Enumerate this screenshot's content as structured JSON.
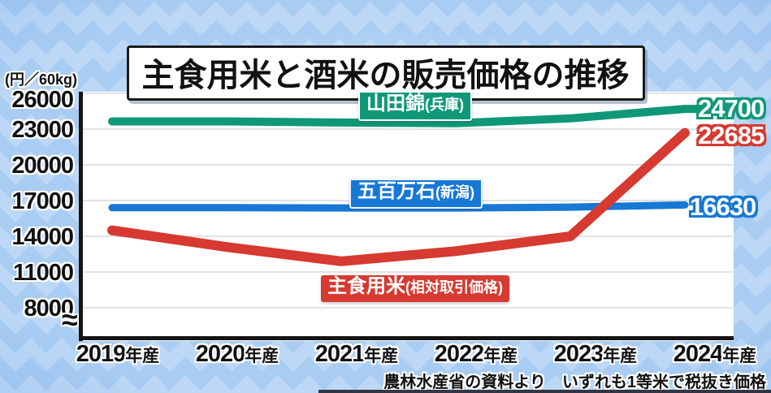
{
  "chart_data": {
    "type": "line",
    "title": "主食用米と酒米の販売価格の推移",
    "unit_label": "(円／60kg)",
    "y_ticks": [
      26000,
      23000,
      20000,
      17000,
      14000,
      11000,
      8000
    ],
    "ylim": [
      8000,
      26000
    ],
    "grid": true,
    "axis_break_symbol": "≈",
    "legend_position": "labels-inline-on-chart",
    "x_labels": [
      "2019",
      "2020",
      "2021",
      "2022",
      "2023",
      "2024"
    ],
    "x_label_suffix": "年産",
    "series": [
      {
        "name": "山田錦(兵庫)",
        "label_main": "山田錦",
        "label_paren": "(兵庫)",
        "color": "#0f9878",
        "values": [
          23650,
          23650,
          23550,
          23500,
          23900,
          24700
        ],
        "end_label": "24700"
      },
      {
        "name": "五百万石(新潟)",
        "label_main": "五百万石",
        "label_paren": "(新潟)",
        "color": "#1778d6",
        "values": [
          16400,
          16400,
          16380,
          16380,
          16450,
          16630
        ],
        "end_label": "16630"
      },
      {
        "name": "主食用米(相対取引価格)",
        "label_main": "主食用米",
        "label_paren": "(相対取引価格)",
        "color": "#d63a31",
        "values": [
          14500,
          13100,
          11900,
          12750,
          14000,
          22685
        ],
        "end_label": "22685"
      }
    ],
    "source_note": "農林水産省の資料より　いずれも1等米で税抜き価格"
  }
}
